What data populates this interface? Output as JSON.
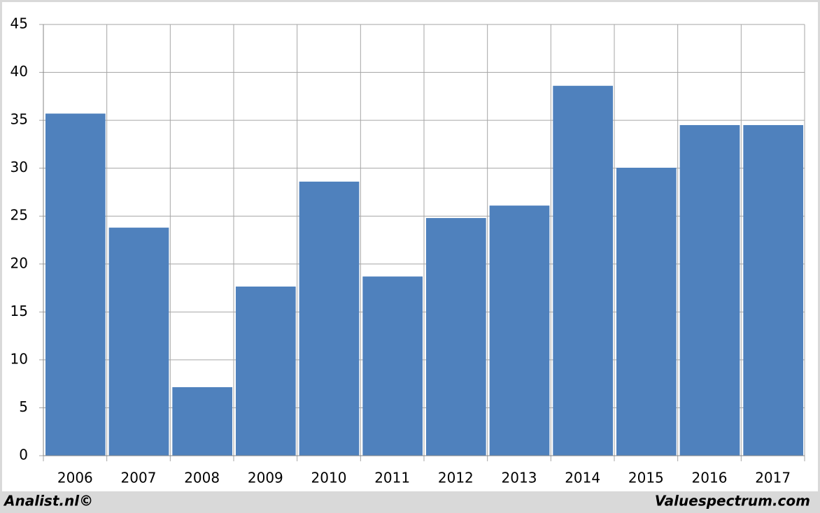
{
  "chart_data": {
    "type": "bar",
    "categories": [
      "2006",
      "2007",
      "2008",
      "2009",
      "2010",
      "2011",
      "2012",
      "2013",
      "2014",
      "2015",
      "2016",
      "2017"
    ],
    "values": [
      35.7,
      23.8,
      7.15,
      17.65,
      28.6,
      18.7,
      24.8,
      26.1,
      38.6,
      30.05,
      34.5,
      34.5
    ],
    "color": "#4f81bd",
    "ylim": [
      0,
      45
    ],
    "yticks": [
      0,
      5,
      10,
      15,
      20,
      25,
      30,
      35,
      40,
      45
    ],
    "grid": true
  },
  "footer": {
    "left": "Analist.nl©",
    "right": "Valuespectrum.com"
  }
}
